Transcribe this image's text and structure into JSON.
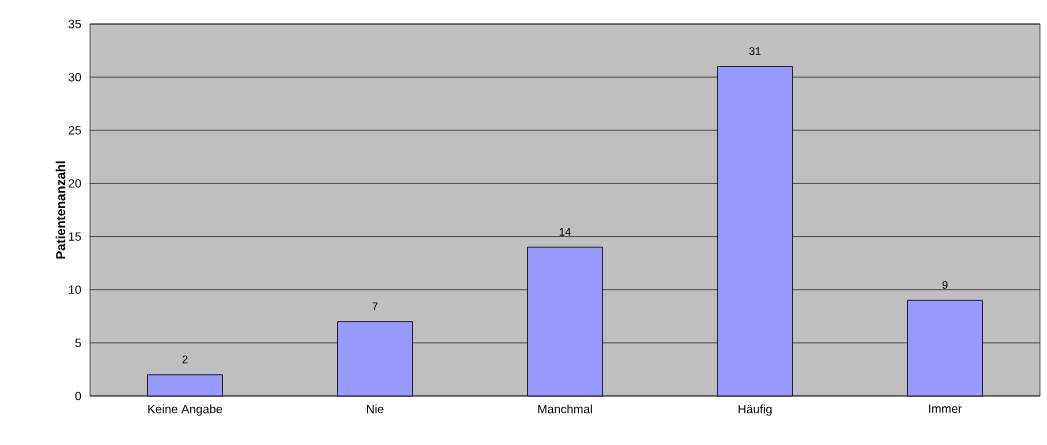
{
  "chart_data": {
    "type": "bar",
    "ylabel": "Patientenanzahl",
    "categories": [
      "Keine Angabe",
      "Nie",
      "Manchmal",
      "Häufig",
      "Immer"
    ],
    "values": [
      2,
      7,
      14,
      31,
      9
    ],
    "color": "#9999ff",
    "ylim": [
      0,
      35
    ],
    "yticks": [
      0,
      5,
      10,
      15,
      20,
      25,
      30,
      35
    ],
    "grid": "y",
    "data_labels": true
  }
}
